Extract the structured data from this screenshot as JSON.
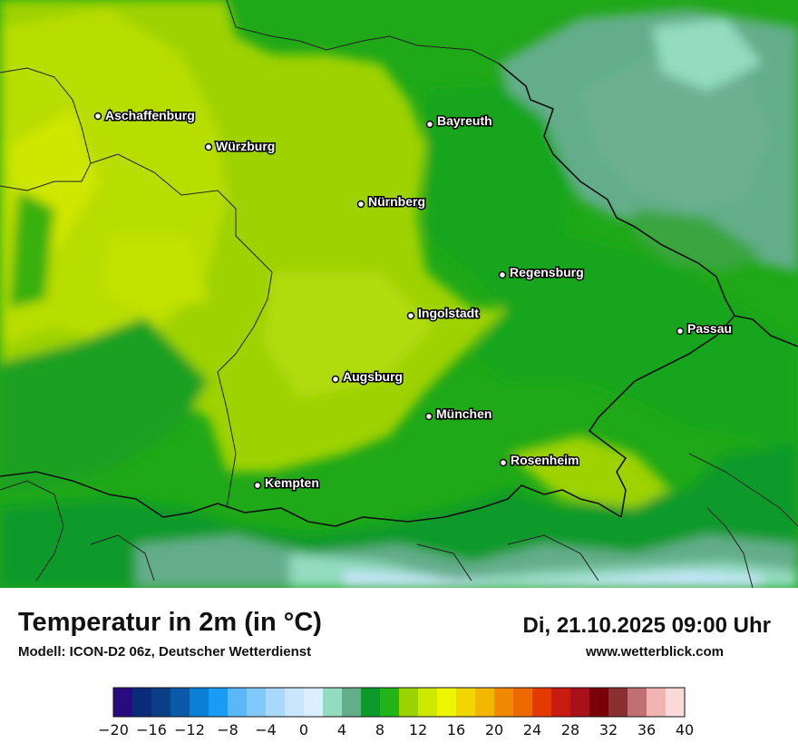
{
  "map": {
    "cities": [
      {
        "name": "Aschaffenburg"
      },
      {
        "name": "Würzburg"
      },
      {
        "name": "Bayreuth"
      },
      {
        "name": "Nürnberg"
      },
      {
        "name": "Regensburg"
      },
      {
        "name": "Ingolstadt"
      },
      {
        "name": "Passau"
      },
      {
        "name": "Augsburg"
      },
      {
        "name": "München"
      },
      {
        "name": "Rosenheim"
      },
      {
        "name": "Kempten"
      }
    ]
  },
  "footer": {
    "title": "Temperatur in 2m (in °C)",
    "subtitle": "Modell: ICON-D2 06z, Deutscher Wetterdienst",
    "datetime": "Di, 21.10.2025 09:00 Uhr",
    "website": "www.wetterblick.com"
  },
  "legend": {
    "colors": [
      "#2a0a80",
      "#0a2a7a",
      "#0a3f86",
      "#0a5aa8",
      "#0a7fd6",
      "#1a9cf5",
      "#5ab8fa",
      "#82c8fb",
      "#a8d8fc",
      "#c8e6fd",
      "#dcefff",
      "#93dcc0",
      "#63ad8a",
      "#0d9a2b",
      "#23b517",
      "#9ad300",
      "#cfe800",
      "#eef500",
      "#f2d600",
      "#f2b700",
      "#f08a00",
      "#ee6a00",
      "#e43a00",
      "#c81c12",
      "#a8101a",
      "#7a0008",
      "#8a3030",
      "#c07070",
      "#f2b3b3",
      "#fbd9d9"
    ],
    "tick_labels": [
      "−20",
      "−16",
      "−12",
      "−8",
      "−4",
      "0",
      "4",
      "8",
      "12",
      "16",
      "20",
      "24",
      "28",
      "32",
      "36",
      "40"
    ]
  }
}
